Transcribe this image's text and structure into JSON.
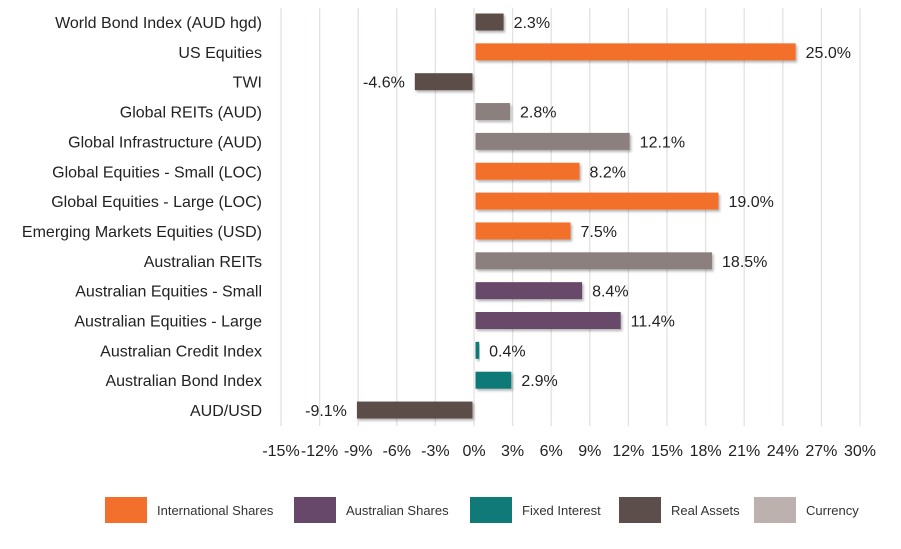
{
  "chart_data": {
    "type": "bar",
    "orientation": "horizontal",
    "title": "",
    "xlabel": "",
    "ylabel": "",
    "xlim": [
      -15,
      30
    ],
    "x_ticks": [
      -15,
      -12,
      -9,
      -6,
      -3,
      0,
      3,
      6,
      9,
      12,
      15,
      18,
      21,
      24,
      27,
      30
    ],
    "x_tick_labels": [
      "-15%",
      "-12%",
      "-9%",
      "-6%",
      "-3%",
      "0%",
      "3%",
      "6%",
      "9%",
      "12%",
      "15%",
      "18%",
      "21%",
      "24%",
      "27%",
      "30%"
    ],
    "grid": "vertical",
    "legend_position": "bottom",
    "categories": [
      "World Bond Index (AUD hgd)",
      "US Equities",
      "TWI",
      "Global REITs (AUD)",
      "Global Infrastructure (AUD)",
      "Global Equities - Small (LOC)",
      "Global Equities - Large (LOC)",
      "Emerging Markets Equities (USD)",
      "Australian REITs",
      "Australian Equities - Small",
      "Australian Equities - Large",
      "Australian Credit Index",
      "Australian Bond Index",
      "AUD/USD"
    ],
    "values": [
      2.3,
      25.0,
      -4.6,
      2.8,
      12.1,
      8.2,
      19.0,
      7.5,
      18.5,
      8.4,
      11.4,
      0.4,
      2.9,
      -9.1
    ],
    "value_labels": [
      "2.3%",
      "25.0%",
      "-4.6%",
      "2.8%",
      "12.1%",
      "8.2%",
      "19.0%",
      "7.5%",
      "18.5%",
      "8.4%",
      "11.4%",
      "0.4%",
      "2.9%",
      "-9.1%"
    ],
    "bar_colors": [
      "#5c4e4a",
      "#f26f2c",
      "#5c4e4a",
      "#8b807d",
      "#8b807d",
      "#f26f2c",
      "#f26f2c",
      "#f26f2c",
      "#8b807d",
      "#67486b",
      "#67486b",
      "#107a78",
      "#107a78",
      "#5c4e4a"
    ],
    "legend": [
      {
        "label": "International Shares",
        "color": "#f26f2c"
      },
      {
        "label": "Australian Shares",
        "color": "#67486b"
      },
      {
        "label": "Fixed Interest",
        "color": "#107a78"
      },
      {
        "label": "Real Assets",
        "color": "#5c4e4a"
      },
      {
        "label": "Currency",
        "color": "#bcb1af"
      }
    ]
  }
}
